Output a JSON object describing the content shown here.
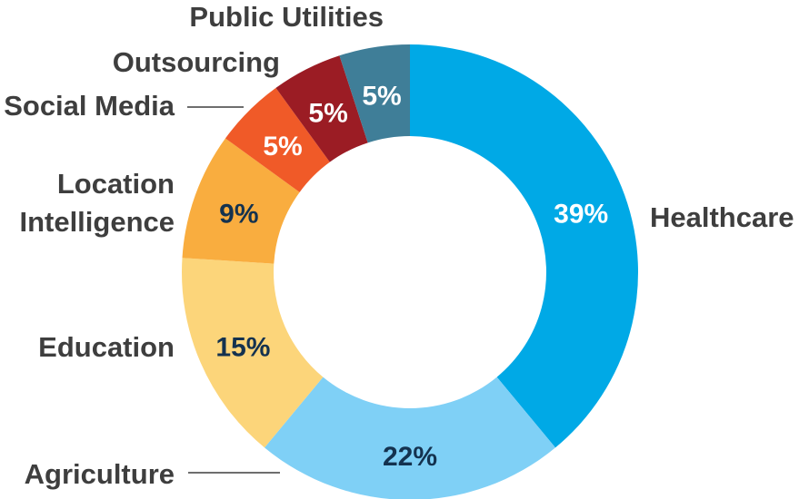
{
  "chart_data": {
    "type": "pie",
    "style": "donut",
    "slices": [
      {
        "label": "Healthcare",
        "value": 39,
        "display": "39%",
        "color": "#00a9e6",
        "text_color": "#ffffff"
      },
      {
        "label": "Agriculture",
        "value": 22,
        "display": "22%",
        "color": "#7fd0f6",
        "text_color": "#14324f"
      },
      {
        "label": "Education",
        "value": 15,
        "display": "15%",
        "color": "#fcd57a",
        "text_color": "#14324f"
      },
      {
        "label": "Location\nIntelligence",
        "value": 9,
        "display": "9%",
        "color": "#f9ad3f",
        "text_color": "#14324f"
      },
      {
        "label": "Social Media",
        "value": 5,
        "display": "5%",
        "color": "#f05a28",
        "text_color": "#ffffff"
      },
      {
        "label": "Outsourcing",
        "value": 5,
        "display": "5%",
        "color": "#9b1c24",
        "text_color": "#ffffff"
      },
      {
        "label": "Public Utilities",
        "value": 5,
        "display": "5%",
        "color": "#3f7e98",
        "text_color": "#ffffff"
      }
    ],
    "direction": "clockwise",
    "start": "top",
    "legend": "none",
    "title": ""
  }
}
